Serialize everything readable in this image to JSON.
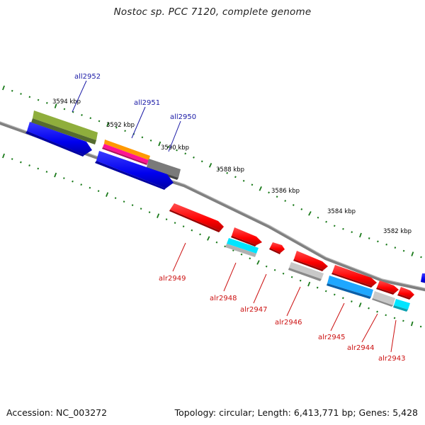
{
  "title": "Nostoc sp. PCC 7120, complete genome",
  "footer": {
    "accession": "Accession: NC_003272",
    "summary": "Topology: circular; Length: 6,413,771 bp; Genes: 5,428"
  },
  "scale_labels": [
    "3594 kbp",
    "3592 kbp",
    "3590 kbp",
    "3588 kbp",
    "3586 kbp",
    "3584 kbp",
    "3582 kbp"
  ],
  "genes_top": [
    "all2952",
    "all2951",
    "all2950"
  ],
  "genes_bottom": [
    "alr2949",
    "alr2948",
    "alr2947",
    "alr2946",
    "alr2945",
    "alr2944",
    "alr2943"
  ],
  "colors": {
    "backbone": "#808080",
    "tick": "#1a7a1a",
    "red": "#ff0000",
    "blue": "#0000ee",
    "olive": "#6b8e23",
    "orange": "#ff9900",
    "magenta": "#ff1493",
    "gray": "#6e6e6e",
    "light_gray": "#bdbdbd",
    "cyan": "#00e5ff",
    "sky": "#1ea7ff"
  }
}
